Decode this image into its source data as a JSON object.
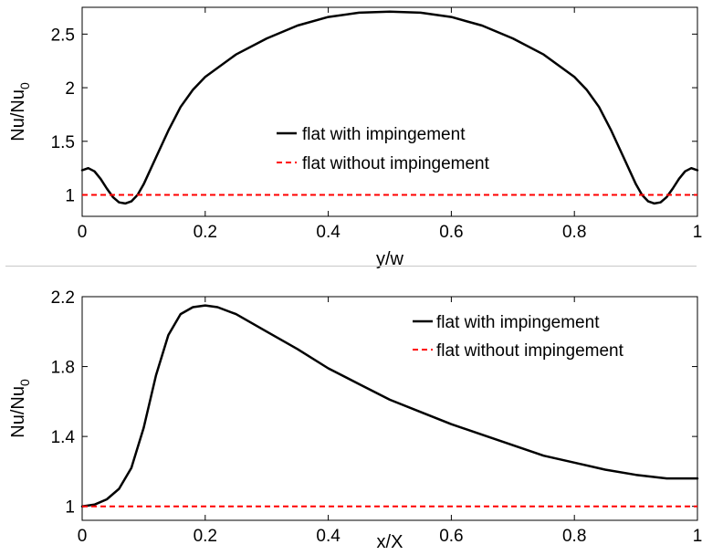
{
  "chart_data": [
    {
      "type": "line",
      "xlabel": "y/w",
      "ylabel": "Nu/Nu",
      "ylabel_sub": "0",
      "xlim": [
        0,
        1
      ],
      "ylim": [
        0.8,
        2.75
      ],
      "xticks": [
        0,
        0.2,
        0.4,
        0.6,
        0.8,
        1
      ],
      "xtick_labels": [
        "0",
        "0.2",
        "0.4",
        "0.6",
        "0.8",
        "1"
      ],
      "yticks": [
        1,
        1.5,
        2,
        2.5
      ],
      "ytick_labels": [
        "1",
        "1.5",
        "2",
        "2.5"
      ],
      "legend_position": "center",
      "series": [
        {
          "name": "flat with impingement",
          "color": "#000000",
          "style": "solid",
          "x": [
            0,
            0.01,
            0.02,
            0.03,
            0.04,
            0.05,
            0.06,
            0.07,
            0.08,
            0.09,
            0.1,
            0.12,
            0.14,
            0.16,
            0.18,
            0.2,
            0.25,
            0.3,
            0.35,
            0.4,
            0.45,
            0.5,
            0.55,
            0.6,
            0.65,
            0.7,
            0.75,
            0.8,
            0.82,
            0.84,
            0.86,
            0.88,
            0.9,
            0.91,
            0.92,
            0.93,
            0.94,
            0.95,
            0.96,
            0.97,
            0.98,
            0.99,
            1
          ],
          "y": [
            1.23,
            1.25,
            1.22,
            1.15,
            1.06,
            0.98,
            0.93,
            0.92,
            0.94,
            1.0,
            1.1,
            1.35,
            1.6,
            1.82,
            1.98,
            2.1,
            2.31,
            2.46,
            2.58,
            2.66,
            2.7,
            2.71,
            2.7,
            2.66,
            2.58,
            2.46,
            2.31,
            2.1,
            1.98,
            1.82,
            1.6,
            1.35,
            1.1,
            1.0,
            0.94,
            0.92,
            0.93,
            0.98,
            1.06,
            1.15,
            1.22,
            1.25,
            1.23
          ]
        },
        {
          "name": "flat without impingement",
          "color": "#ff0000",
          "style": "dashed",
          "x": [
            0,
            1
          ],
          "y": [
            1,
            1
          ]
        }
      ]
    },
    {
      "type": "line",
      "xlabel": "x/X",
      "ylabel": "Nu/Nu",
      "ylabel_sub": "0",
      "xlim": [
        0,
        1
      ],
      "ylim": [
        0.92,
        2.2
      ],
      "xticks": [
        0,
        0.2,
        0.4,
        0.6,
        0.8,
        1
      ],
      "xtick_labels": [
        "0",
        "0.2",
        "0.4",
        "0.6",
        "0.8",
        "1"
      ],
      "yticks": [
        1,
        1.4,
        1.8,
        2.2
      ],
      "ytick_labels": [
        "1",
        "1.4",
        "1.8",
        "2.2"
      ],
      "legend_position": "top-right",
      "series": [
        {
          "name": "flat with impingement",
          "color": "#000000",
          "style": "solid",
          "x": [
            0,
            0.02,
            0.04,
            0.06,
            0.08,
            0.1,
            0.12,
            0.14,
            0.16,
            0.18,
            0.2,
            0.22,
            0.25,
            0.3,
            0.35,
            0.4,
            0.45,
            0.5,
            0.55,
            0.6,
            0.65,
            0.7,
            0.75,
            0.8,
            0.85,
            0.9,
            0.95,
            1
          ],
          "y": [
            1.0,
            1.01,
            1.04,
            1.1,
            1.22,
            1.45,
            1.75,
            1.98,
            2.1,
            2.14,
            2.15,
            2.14,
            2.1,
            2.0,
            1.9,
            1.79,
            1.7,
            1.61,
            1.54,
            1.47,
            1.41,
            1.35,
            1.29,
            1.25,
            1.21,
            1.18,
            1.16,
            1.16
          ]
        },
        {
          "name": "flat without impingement",
          "color": "#ff0000",
          "style": "dashed",
          "x": [
            0,
            1
          ],
          "y": [
            1,
            1
          ]
        }
      ]
    }
  ]
}
